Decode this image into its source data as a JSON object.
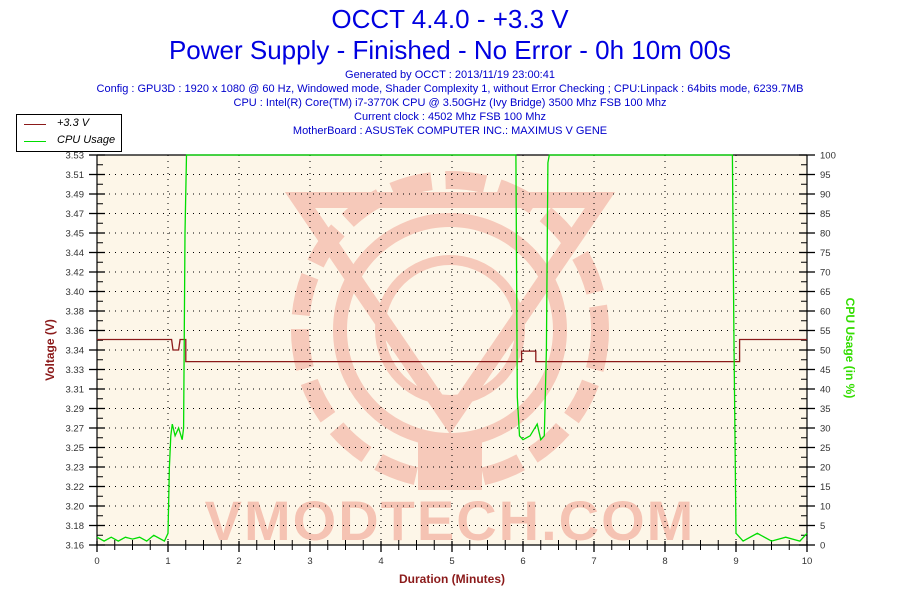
{
  "header": {
    "title": "OCCT 4.4.0 - +3.3 V",
    "subtitle": "Power Supply - Finished - No Error - 0h 10m 00s",
    "info_lines": [
      "Generated by OCCT : 2013/11/19 23:00:41",
      "Config : GPU3D : 1920 x 1080 @ 60 Hz, Windowed mode, Shader Complexity 1, without Error Checking ; CPU:Linpack : 64bits mode, 6239.7MB",
      "CPU : Intel(R) Core(TM) i7-3770K CPU @ 3.50GHz (Ivy Bridge) 3500 Mhz FSB 100 Mhz",
      "Current clock : 4502 Mhz FSB 100 Mhz",
      "MotherBoard : ASUSTeK COMPUTER INC.: MAXIMUS V GENE"
    ]
  },
  "legend": [
    {
      "label": "+3.3 V",
      "color": "#8b1a1a"
    },
    {
      "label": "CPU Usage",
      "color": "#00dd00"
    }
  ],
  "watermark": "VMODTECH.COM",
  "colors": {
    "plot_bg": "#fdf6e8",
    "voltage": "#8b1a1a",
    "cpu": "#00dd00",
    "title": "#0000e0",
    "left_axis_label": "#8b1a1a",
    "right_axis_label": "#33dd00"
  },
  "chart_data": {
    "type": "line",
    "title": "OCCT 4.4.0 - +3.3 V",
    "subtitle": "Power Supply - Finished - No Error - 0h 10m 00s",
    "xlabel": "Duration (Minutes)",
    "ylabel_left": "Voltage (V)",
    "ylabel_right": "CPU Usage (in %)",
    "xlim": [
      0,
      10
    ],
    "x_ticks": [
      "0",
      "1",
      "2",
      "3",
      "4",
      "5",
      "6",
      "7",
      "8",
      "9",
      "10"
    ],
    "ylim_left": [
      3.16,
      3.53
    ],
    "y_ticks_left": [
      "3.16",
      "3.18",
      "3.20",
      "3.22",
      "3.23",
      "3.25",
      "3.27",
      "3.29",
      "3.31",
      "3.33",
      "3.34",
      "3.36",
      "3.38",
      "3.40",
      "3.42",
      "3.44",
      "3.45",
      "3.47",
      "3.49",
      "3.51",
      "3.53"
    ],
    "ylim_right": [
      0,
      100
    ],
    "y_ticks_right": [
      "0",
      "5",
      "10",
      "15",
      "20",
      "25",
      "30",
      "35",
      "40",
      "45",
      "50",
      "55",
      "60",
      "65",
      "70",
      "75",
      "80",
      "85",
      "90",
      "95",
      "100"
    ],
    "grid": "dotted",
    "legend_position": "top-left",
    "series": [
      {
        "name": "+3.3 V",
        "axis": "left",
        "points": [
          [
            0,
            3.355
          ],
          [
            1.05,
            3.355
          ],
          [
            1.07,
            3.345
          ],
          [
            1.15,
            3.345
          ],
          [
            1.17,
            3.355
          ],
          [
            1.25,
            3.355
          ],
          [
            1.25,
            3.334
          ],
          [
            5.98,
            3.334
          ],
          [
            5.98,
            3.344
          ],
          [
            6.18,
            3.344
          ],
          [
            6.18,
            3.334
          ],
          [
            8.98,
            3.334
          ],
          [
            9.05,
            3.334
          ],
          [
            9.05,
            3.355
          ],
          [
            10,
            3.355
          ]
        ]
      },
      {
        "name": "CPU Usage",
        "axis": "right",
        "points": [
          [
            0,
            2
          ],
          [
            0.1,
            1
          ],
          [
            0.2,
            2
          ],
          [
            0.3,
            1
          ],
          [
            0.4,
            2
          ],
          [
            0.5,
            1.5
          ],
          [
            0.6,
            2
          ],
          [
            0.7,
            1
          ],
          [
            0.8,
            2.5
          ],
          [
            0.95,
            1
          ],
          [
            1.0,
            3
          ],
          [
            1.02,
            20
          ],
          [
            1.04,
            28
          ],
          [
            1.06,
            31
          ],
          [
            1.1,
            28
          ],
          [
            1.15,
            30
          ],
          [
            1.2,
            27
          ],
          [
            1.22,
            30
          ],
          [
            1.24,
            80
          ],
          [
            1.26,
            100
          ],
          [
            5.9,
            100
          ],
          [
            5.92,
            38
          ],
          [
            5.95,
            28
          ],
          [
            6.0,
            27
          ],
          [
            6.1,
            28
          ],
          [
            6.2,
            31
          ],
          [
            6.25,
            27
          ],
          [
            6.3,
            28
          ],
          [
            6.33,
            50
          ],
          [
            6.35,
            98
          ],
          [
            6.37,
            100
          ],
          [
            8.95,
            100
          ],
          [
            8.97,
            54
          ],
          [
            9.0,
            3
          ],
          [
            9.1,
            1
          ],
          [
            9.3,
            3
          ],
          [
            9.5,
            1
          ],
          [
            9.7,
            2
          ],
          [
            9.9,
            1
          ],
          [
            10,
            3
          ]
        ]
      }
    ]
  }
}
